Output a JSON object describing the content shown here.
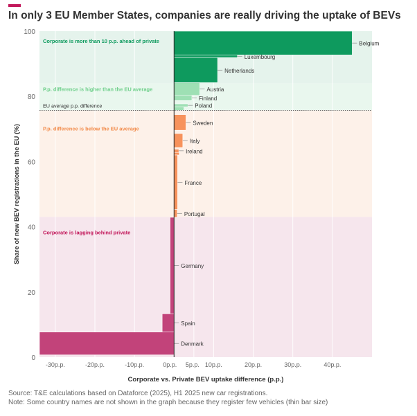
{
  "title": "In only 3 EU Member States, companies are really driving the uptake of BEVs",
  "footer": {
    "source": "Source: T&E calculations based on Dataforce (2025), H1 2025 new car registrations.",
    "note": "Note: Some country names are not shown in the graph because they register few vehicles (thin bar size)"
  },
  "colors": {
    "accent": "#c2185b",
    "zone_ahead": "#e5f3ec",
    "zone_higher": "#e9f7ee",
    "zone_below": "#fdf1e9",
    "zone_lagging": "#f6e6ed",
    "bar_ahead": "#0e9a5e",
    "bar_higher": "#9ee0b4",
    "bar_below": "#f7925c",
    "bar_lagging": "#c2437a",
    "label_ahead": "#0e9a5e",
    "label_higher": "#6fcf8b",
    "label_below": "#f28c4c",
    "label_lagging": "#c2185b"
  },
  "chart_data": {
    "type": "bar",
    "orientation": "variable-width (marimekko-style) horizontal bars",
    "title": "In only 3 EU Member States, companies are really driving the uptake of BEVs",
    "xlabel": "Corporate vs. Private BEV uptake difference (p.p.)",
    "ylabel": "Share of new BEV registrations in the EU (%)",
    "xlim": [
      -34,
      50
    ],
    "ylim": [
      0,
      100
    ],
    "x_ticks": [
      {
        "value": -30,
        "label": "-30p.p."
      },
      {
        "value": -20,
        "label": "-20p.p."
      },
      {
        "value": -10,
        "label": "-10p.p."
      },
      {
        "value": 0,
        "label": "0p.p."
      },
      {
        "value": 5,
        "label": "5p.p."
      },
      {
        "value": 10,
        "label": "10p.p."
      },
      {
        "value": 20,
        "label": "20p.p."
      },
      {
        "value": 30,
        "label": "30p.p."
      },
      {
        "value": 40,
        "label": "40p.p."
      }
    ],
    "y_ticks": [
      0,
      20,
      40,
      60,
      80,
      100
    ],
    "eu_average": {
      "y": 75.7,
      "label": "EU average p.p. difference"
    },
    "zones": [
      {
        "name": "ahead",
        "label": "Corporate is more than 10 p.p. ahead of private",
        "y0": 84,
        "y1": 100
      },
      {
        "name": "higher",
        "label": "P.p. difference is higher than the EU average",
        "y0": 75.7,
        "y1": 84
      },
      {
        "name": "below",
        "label": "P.p. difference is below the EU average",
        "y0": 43,
        "y1": 75.7
      },
      {
        "name": "lagging",
        "label": "Corporate is lagging behind private",
        "y0": 0,
        "y1": 43
      }
    ],
    "countries": [
      {
        "name": "Belgium",
        "value": 45,
        "y0": 92.7,
        "y1": 100,
        "group": "ahead"
      },
      {
        "name": "Luxembourg",
        "value": 16,
        "y0": 91.9,
        "y1": 92.7,
        "group": "ahead"
      },
      {
        "name": "Netherlands",
        "value": 11,
        "y0": 84.2,
        "y1": 91.9,
        "group": "ahead"
      },
      {
        "name": "Austria",
        "value": 6.5,
        "y0": 80.3,
        "y1": 84.2,
        "group": "higher"
      },
      {
        "name": "Finland",
        "value": 4.5,
        "y0": 78.7,
        "y1": 80.3,
        "group": "higher"
      },
      {
        "name": "Poland",
        "value": 3.5,
        "y0": 76.8,
        "y1": 77.7,
        "group": "higher"
      },
      {
        "name": "Sweden",
        "value": 3,
        "y0": 69.6,
        "y1": 74.4,
        "group": "below"
      },
      {
        "name": "Italy",
        "value": 2.2,
        "y0": 64.3,
        "y1": 68.6,
        "group": "below"
      },
      {
        "name": "Ireland",
        "value": 1.2,
        "y0": 62.8,
        "y1": 63.8,
        "group": "below"
      },
      {
        "name": "France",
        "value": 0.9,
        "y0": 45.3,
        "y1": 62.0,
        "group": "below"
      },
      {
        "name": "Portugal",
        "value": 0.8,
        "y0": 42.9,
        "y1": 45.3,
        "group": "below"
      },
      {
        "name": "Germany",
        "value": -1,
        "y0": 13.3,
        "y1": 42.9,
        "group": "lagging"
      },
      {
        "name": "Spain",
        "value": -3,
        "y0": 7.7,
        "y1": 13.3,
        "group": "lagging"
      },
      {
        "name": "Denmark",
        "value": -34,
        "y0": 0.7,
        "y1": 7.7,
        "group": "lagging"
      }
    ],
    "unlabeled_bars": [
      {
        "value": 2.5,
        "y0": 75.7,
        "y1": 76.8,
        "group": "higher"
      },
      {
        "value": 1.3,
        "y0": 62.0,
        "y1": 62.8,
        "group": "below"
      }
    ]
  }
}
